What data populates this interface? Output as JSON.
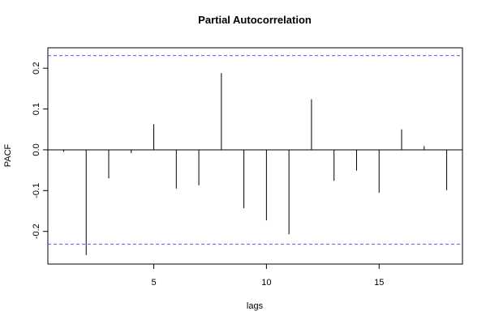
{
  "chart_data": {
    "type": "bar",
    "title": "Partial Autocorrelation",
    "xlabel": "lags",
    "ylabel": "PACF",
    "xlim": [
      0.3,
      18.7
    ],
    "ylim": [
      -0.28,
      0.25
    ],
    "x_ticks": [
      5,
      10,
      15
    ],
    "y_ticks": [
      -0.2,
      -0.1,
      0.0,
      0.1,
      0.2
    ],
    "y_tick_labels": [
      "-0.2",
      "-0.1",
      "0.0",
      "0.1",
      "0.2"
    ],
    "lags": [
      1,
      2,
      3,
      4,
      5,
      6,
      7,
      8,
      9,
      10,
      11,
      12,
      13,
      14,
      15,
      16,
      17,
      18
    ],
    "values": [
      -0.005,
      -0.258,
      -0.07,
      -0.008,
      0.063,
      -0.095,
      -0.087,
      0.188,
      -0.143,
      -0.173,
      -0.207,
      0.124,
      -0.076,
      -0.051,
      -0.105,
      0.05,
      0.009,
      -0.099
    ],
    "confidence_band": [
      0.231,
      -0.231
    ],
    "colors": {
      "bars": "#000000",
      "band": "#5555ff",
      "zero_line": "#000000",
      "frame": "#000000"
    }
  }
}
